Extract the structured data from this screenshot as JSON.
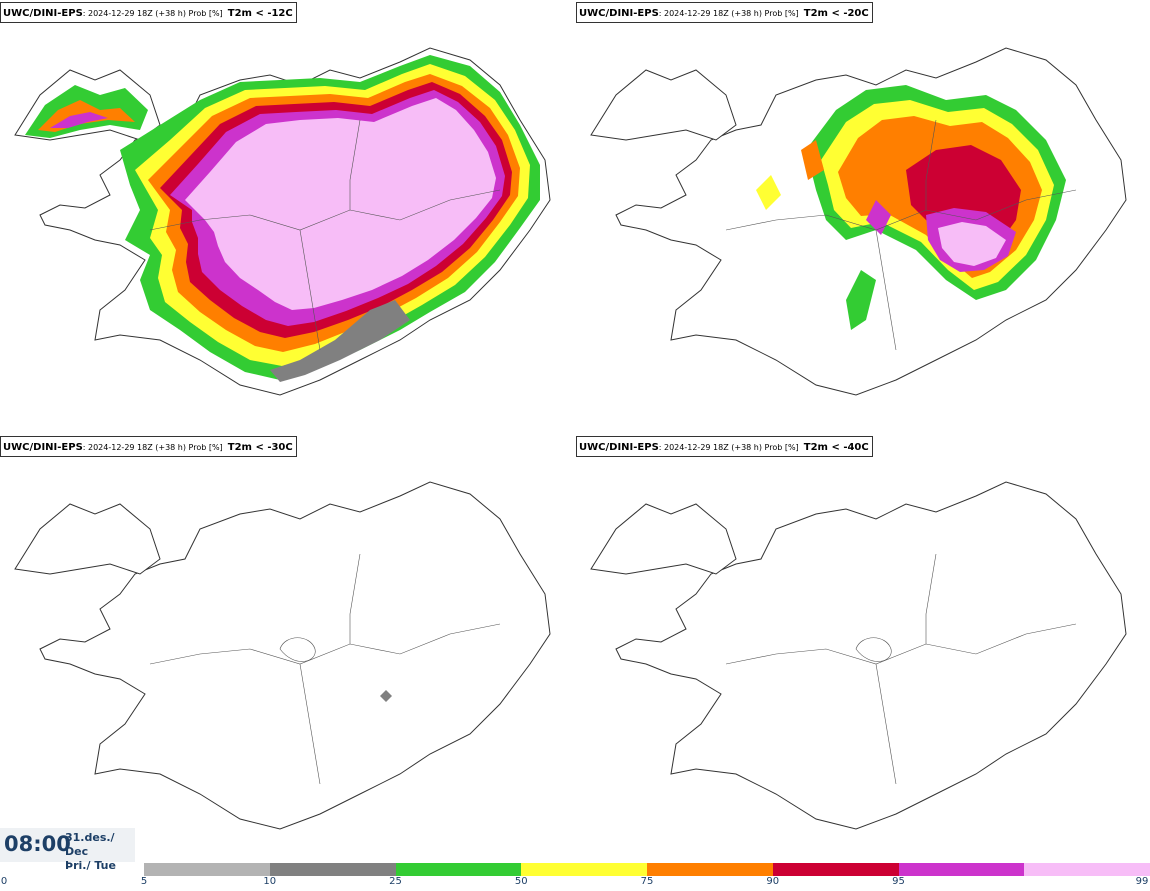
{
  "panels": [
    {
      "source": "UWC/DINI-EPS",
      "meta": ": 2024-12-29 18Z (+38 h) Prob [%]",
      "variable": "T2m < -12C"
    },
    {
      "source": "UWC/DINI-EPS",
      "meta": ": 2024-12-29 18Z (+38 h) Prob [%]",
      "variable": "T2m < -20C"
    },
    {
      "source": "UWC/DINI-EPS",
      "meta": ": 2024-12-29 18Z (+38 h) Prob [%]",
      "variable": "T2m < -30C"
    },
    {
      "source": "UWC/DINI-EPS",
      "meta": ": 2024-12-29 18Z (+38 h) Prob [%]",
      "variable": "T2m < -40C"
    }
  ],
  "valid_time": {
    "clock": "08:00",
    "date_line1": "31.des./ Dec",
    "date_line2": "Þri./ Tue"
  },
  "legend": {
    "ticks": [
      "0",
      "5",
      "10",
      "25",
      "50",
      "75",
      "90",
      "95",
      "99"
    ],
    "colors": [
      "#b3b3b3",
      "#808080",
      "#33cc33",
      "#ffff33",
      "#ff7f00",
      "#cc0033",
      "#cc33cc",
      "#f7bdf7"
    ]
  },
  "style": {
    "land_fill": "#ffffff",
    "coast_line": "#333333",
    "text_color": "#1d3f66"
  }
}
